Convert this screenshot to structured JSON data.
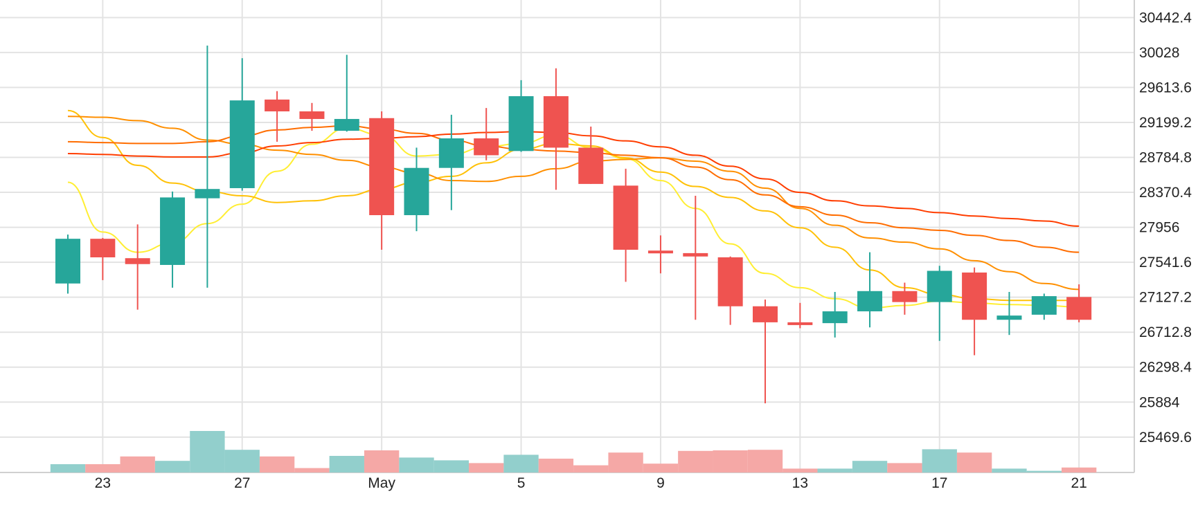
{
  "chart_data": {
    "type": "candlestick",
    "grid": true,
    "x_ticks": [
      {
        "index": 1,
        "label": "23"
      },
      {
        "index": 5,
        "label": "27"
      },
      {
        "index": 9,
        "label": "May"
      },
      {
        "index": 13,
        "label": "5"
      },
      {
        "index": 17,
        "label": "9"
      },
      {
        "index": 21,
        "label": "13"
      },
      {
        "index": 25,
        "label": "17"
      },
      {
        "index": 29,
        "label": "21"
      }
    ],
    "y_ticks": [
      "25469.6",
      "25884",
      "26298.4",
      "26712.8",
      "27127.2",
      "27541.6",
      "27956",
      "28370.4",
      "28784.8",
      "29199.2",
      "29613.6",
      "30028",
      "30442.4"
    ],
    "ylim": [
      25050,
      30650
    ],
    "colors": {
      "up": "#26a69a",
      "down": "#ef5350",
      "volume_up": "#92cfcc",
      "volume_down": "#f5a8a6",
      "grid": "#e3e3e3"
    },
    "candles": [
      {
        "open": 27290,
        "high": 27870,
        "low": 27170,
        "close": 27820,
        "volume": 0.15
      },
      {
        "open": 27820,
        "high": 27830,
        "low": 27330,
        "close": 27600,
        "volume": 0.15
      },
      {
        "open": 27590,
        "high": 27990,
        "low": 26980,
        "close": 27520,
        "volume": 0.29
      },
      {
        "open": 27510,
        "high": 28380,
        "low": 27240,
        "close": 28310,
        "volume": 0.21
      },
      {
        "open": 28300,
        "high": 30110,
        "low": 27240,
        "close": 28410,
        "volume": 0.75
      },
      {
        "open": 28420,
        "high": 29960,
        "low": 28390,
        "close": 29460,
        "volume": 0.41
      },
      {
        "open": 29470,
        "high": 29570,
        "low": 28970,
        "close": 29330,
        "volume": 0.29
      },
      {
        "open": 29330,
        "high": 29430,
        "low": 29100,
        "close": 29240,
        "volume": 0.08
      },
      {
        "open": 29100,
        "high": 30000,
        "low": 29090,
        "close": 29240,
        "volume": 0.3
      },
      {
        "open": 29250,
        "high": 29330,
        "low": 27690,
        "close": 28100,
        "volume": 0.4
      },
      {
        "open": 28100,
        "high": 28900,
        "low": 27910,
        "close": 28660,
        "volume": 0.27
      },
      {
        "open": 28660,
        "high": 29290,
        "low": 28160,
        "close": 29010,
        "volume": 0.22
      },
      {
        "open": 29010,
        "high": 29370,
        "low": 28750,
        "close": 28810,
        "volume": 0.17
      },
      {
        "open": 28860,
        "high": 29700,
        "low": 28850,
        "close": 29510,
        "volume": 0.32
      },
      {
        "open": 29510,
        "high": 29840,
        "low": 28400,
        "close": 28900,
        "volume": 0.25
      },
      {
        "open": 28900,
        "high": 29150,
        "low": 28470,
        "close": 28470,
        "volume": 0.13
      },
      {
        "open": 28450,
        "high": 28650,
        "low": 27310,
        "close": 27690,
        "volume": 0.36
      },
      {
        "open": 27680,
        "high": 27860,
        "low": 27410,
        "close": 27650,
        "volume": 0.16
      },
      {
        "open": 27650,
        "high": 28330,
        "low": 26860,
        "close": 27610,
        "volume": 0.39
      },
      {
        "open": 27600,
        "high": 27610,
        "low": 26800,
        "close": 27020,
        "volume": 0.4
      },
      {
        "open": 27020,
        "high": 27100,
        "low": 25870,
        "close": 26830,
        "volume": 0.41
      },
      {
        "open": 26830,
        "high": 27060,
        "low": 26760,
        "close": 26800,
        "volume": 0.07
      },
      {
        "open": 26820,
        "high": 27190,
        "low": 26650,
        "close": 26960,
        "volume": 0.07
      },
      {
        "open": 26960,
        "high": 27660,
        "low": 26770,
        "close": 27200,
        "volume": 0.21
      },
      {
        "open": 27200,
        "high": 27300,
        "low": 26920,
        "close": 27070,
        "volume": 0.17
      },
      {
        "open": 27070,
        "high": 27500,
        "low": 26610,
        "close": 27440,
        "volume": 0.42
      },
      {
        "open": 27420,
        "high": 27480,
        "low": 26440,
        "close": 26860,
        "volume": 0.36
      },
      {
        "open": 26860,
        "high": 27190,
        "low": 26680,
        "close": 26910,
        "volume": 0.07
      },
      {
        "open": 26920,
        "high": 27170,
        "low": 26860,
        "close": 27140,
        "volume": 0.03
      },
      {
        "open": 27130,
        "high": 27280,
        "low": 26830,
        "close": 26860,
        "volume": 0.09
      }
    ],
    "moving_averages": [
      {
        "color": "#ffee33",
        "values": [
          28490,
          27900,
          27660,
          27770,
          28000,
          28230,
          28620,
          28940,
          29130,
          29050,
          28800,
          28820,
          28910,
          28950,
          29050,
          28900,
          28770,
          28510,
          28180,
          27760,
          27410,
          27240,
          27110,
          27000,
          27030,
          27080,
          27060,
          27040,
          27030,
          27010
        ]
      },
      {
        "color": "#ffc107",
        "values": [
          29340,
          29020,
          28690,
          28480,
          28380,
          28330,
          28250,
          28270,
          28330,
          28410,
          28490,
          28560,
          28720,
          28880,
          28950,
          28920,
          28780,
          28610,
          28440,
          28310,
          28150,
          27950,
          27720,
          27450,
          27240,
          27160,
          27110,
          27090,
          27090,
          27090
        ]
      },
      {
        "color": "#ff8f00",
        "values": [
          29270,
          29260,
          29220,
          29130,
          28990,
          28940,
          28870,
          28820,
          28750,
          28670,
          28600,
          28510,
          28500,
          28560,
          28650,
          28740,
          28760,
          28780,
          28740,
          28620,
          28420,
          28180,
          27980,
          27830,
          27780,
          27700,
          27560,
          27430,
          27290,
          27220
        ]
      },
      {
        "color": "#ff6d00",
        "values": [
          28970,
          28960,
          28950,
          28950,
          28970,
          29040,
          29110,
          29140,
          29160,
          29120,
          29070,
          28990,
          28920,
          28880,
          28860,
          28840,
          28810,
          28780,
          28670,
          28520,
          28340,
          28200,
          28100,
          28010,
          27950,
          27920,
          27860,
          27800,
          27720,
          27660
        ]
      },
      {
        "color": "#ff3d00",
        "values": [
          28830,
          28820,
          28800,
          28790,
          28790,
          28840,
          28920,
          28960,
          29000,
          29010,
          29030,
          29060,
          29080,
          29090,
          29080,
          29040,
          28980,
          28910,
          28810,
          28680,
          28530,
          28370,
          28270,
          28210,
          28180,
          28130,
          28090,
          28060,
          28030,
          27970
        ]
      }
    ]
  }
}
